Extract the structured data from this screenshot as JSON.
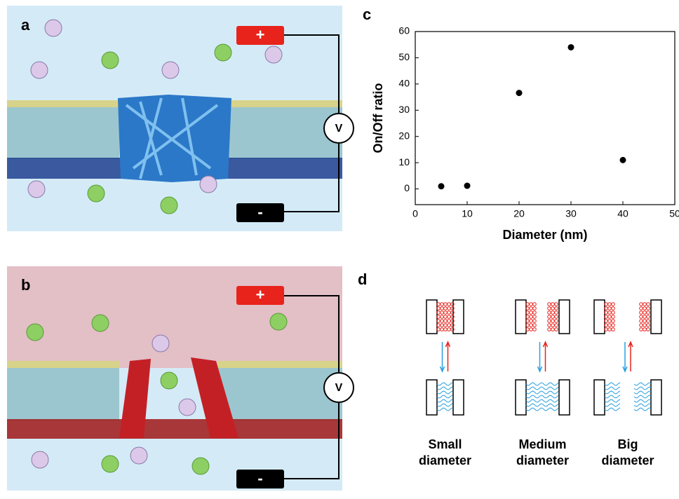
{
  "panel_labels": [
    "a",
    "b",
    "c",
    "d"
  ],
  "circuit": {
    "plus": "+",
    "minus": "-",
    "voltmeter": "V"
  },
  "chart_data": {
    "type": "scatter",
    "x_label": "Diameter (nm)",
    "y_label": "On/Off ratio",
    "x": [
      5,
      10,
      20,
      30,
      40
    ],
    "values": [
      1,
      1.2,
      36.6,
      54,
      11
    ],
    "color": "#000000",
    "xlim": [
      0,
      50
    ],
    "ylim": [
      -6,
      60
    ],
    "xticks": [
      0,
      10,
      20,
      30,
      40,
      50
    ],
    "yticks": [
      0,
      10,
      20,
      30,
      40,
      50,
      60
    ]
  },
  "diagram_d": {
    "labels": [
      [
        "Small",
        "diameter"
      ],
      [
        "Medium",
        "diameter"
      ],
      [
        "Big",
        "diameter"
      ]
    ]
  }
}
